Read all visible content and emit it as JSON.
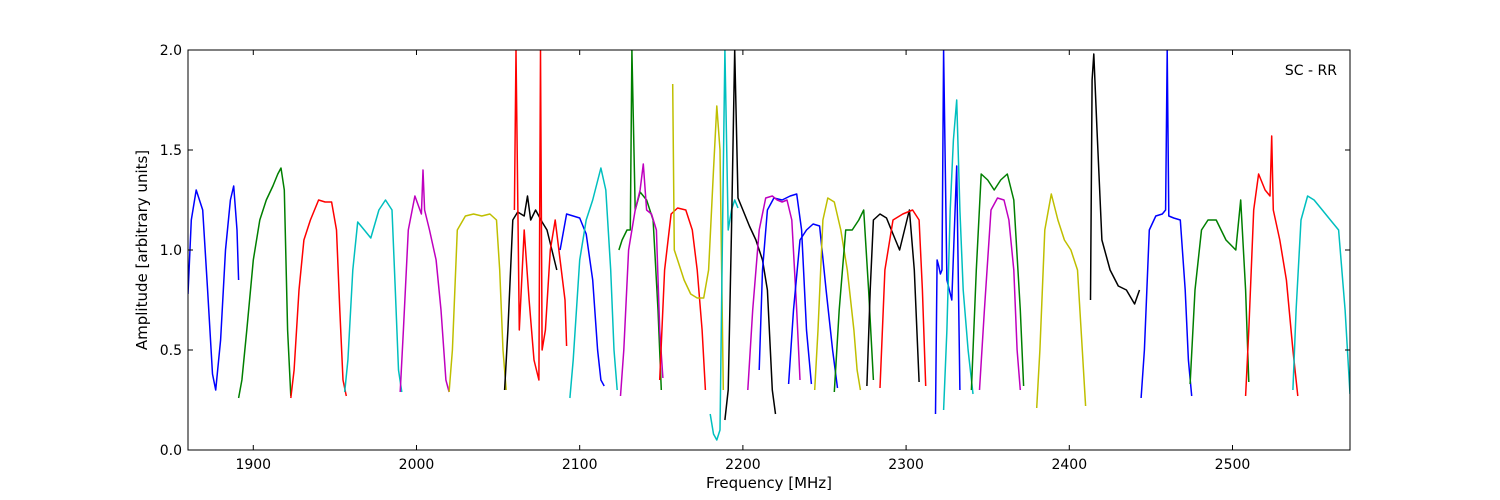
{
  "chart_data": {
    "type": "line",
    "title": "",
    "annotation": "SC - RR",
    "xlabel": "Frequency [MHz]",
    "ylabel": "Amplitude [arbitrary units]",
    "xlim": [
      1860,
      2572
    ],
    "ylim": [
      0.0,
      2.0
    ],
    "xticks": [
      1900,
      2000,
      2100,
      2200,
      2300,
      2400,
      2500
    ],
    "yticks": [
      0.0,
      0.5,
      1.0,
      1.5,
      2.0
    ],
    "xtick_labels": [
      "1900",
      "2000",
      "2100",
      "2200",
      "2300",
      "2400",
      "2500"
    ],
    "ytick_labels": [
      "0.0",
      "0.5",
      "1.0",
      "1.5",
      "2.0"
    ],
    "grid": false,
    "series": [
      {
        "color": "#0000ff",
        "x": [
          1860,
          1862,
          1865,
          1869,
          1872,
          1875,
          1877,
          1880,
          1883,
          1886,
          1888,
          1890,
          1891
        ],
        "y": [
          0.78,
          1.15,
          1.3,
          1.2,
          0.8,
          0.38,
          0.3,
          0.55,
          1.0,
          1.25,
          1.32,
          1.1,
          0.85
        ]
      },
      {
        "color": "#007f00",
        "x": [
          1891,
          1893,
          1896,
          1900,
          1904,
          1908,
          1912,
          1915,
          1917,
          1919,
          1921,
          1923
        ],
        "y": [
          0.26,
          0.35,
          0.6,
          0.95,
          1.15,
          1.25,
          1.32,
          1.38,
          1.41,
          1.3,
          0.6,
          0.27
        ]
      },
      {
        "color": "#ff0000",
        "x": [
          1923,
          1925,
          1928,
          1931,
          1935,
          1940,
          1944,
          1948,
          1951,
          1953,
          1955,
          1957
        ],
        "y": [
          0.26,
          0.4,
          0.8,
          1.05,
          1.15,
          1.25,
          1.24,
          1.24,
          1.1,
          0.7,
          0.35,
          0.27
        ]
      },
      {
        "color": "#00bfbf",
        "x": [
          1956,
          1958,
          1961,
          1964,
          1968,
          1972,
          1977,
          1981,
          1985,
          1987,
          1989,
          1991
        ],
        "y": [
          0.29,
          0.45,
          0.9,
          1.14,
          1.1,
          1.06,
          1.2,
          1.25,
          1.2,
          0.8,
          0.4,
          0.29
        ]
      },
      {
        "color": "#bf00bf",
        "x": [
          1990,
          1992,
          1995,
          1999,
          2003,
          2004,
          2005,
          2008,
          2012,
          2015,
          2018,
          2020
        ],
        "y": [
          0.29,
          0.6,
          1.1,
          1.27,
          1.18,
          1.4,
          1.2,
          1.1,
          0.95,
          0.7,
          0.35,
          0.29
        ]
      },
      {
        "color": "#bfbf00",
        "x": [
          2020,
          2022,
          2025,
          2030,
          2035,
          2040,
          2045,
          2049,
          2051,
          2053,
          2055
        ],
        "y": [
          0.29,
          0.5,
          1.1,
          1.17,
          1.18,
          1.17,
          1.18,
          1.15,
          0.9,
          0.5,
          0.3
        ]
      },
      {
        "color": "#000000",
        "x": [
          2054,
          2056,
          2059,
          2062,
          2066,
          2068,
          2070,
          2073,
          2077,
          2080,
          2083,
          2086
        ],
        "y": [
          0.3,
          0.6,
          1.15,
          1.19,
          1.17,
          1.27,
          1.15,
          1.2,
          1.14,
          1.1,
          1.0,
          0.9
        ]
      },
      {
        "color": "#ff0000",
        "x": [
          2060,
          2061,
          2063,
          2066,
          2069,
          2072,
          2075,
          2076,
          2077,
          2079,
          2082,
          2085,
          2088,
          2091,
          2092
        ],
        "y": [
          1.2,
          2.0,
          0.6,
          1.1,
          0.75,
          0.45,
          0.35,
          2.0,
          0.5,
          0.6,
          1.0,
          1.15,
          0.95,
          0.75,
          0.52
        ]
      },
      {
        "color": "#0000ff",
        "x": [
          2088,
          2092,
          2096,
          2100,
          2104,
          2108,
          2111,
          2113,
          2115
        ],
        "y": [
          1.0,
          1.18,
          1.17,
          1.16,
          1.08,
          0.85,
          0.5,
          0.35,
          0.32
        ]
      },
      {
        "color": "#00bfbf",
        "x": [
          2094,
          2096,
          2100,
          2104,
          2108,
          2113,
          2116,
          2119,
          2121,
          2123
        ],
        "y": [
          0.26,
          0.45,
          0.95,
          1.15,
          1.25,
          1.41,
          1.3,
          0.9,
          0.5,
          0.3
        ]
      },
      {
        "color": "#007f00",
        "x": [
          2124,
          2126,
          2129,
          2131,
          2132,
          2134,
          2137,
          2141,
          2145,
          2148,
          2150
        ],
        "y": [
          1.0,
          1.05,
          1.1,
          1.1,
          2.0,
          1.2,
          1.29,
          1.25,
          1.15,
          0.7,
          0.3
        ]
      },
      {
        "color": "#bf00bf",
        "x": [
          2125,
          2127,
          2130,
          2134,
          2137,
          2139,
          2141,
          2144,
          2147,
          2149,
          2151
        ],
        "y": [
          0.27,
          0.5,
          1.0,
          1.2,
          1.3,
          1.43,
          1.2,
          1.18,
          1.1,
          0.6,
          0.36
        ]
      },
      {
        "color": "#ff0000",
        "x": [
          2149,
          2152,
          2156,
          2160,
          2165,
          2169,
          2172,
          2175,
          2177
        ],
        "y": [
          0.35,
          0.9,
          1.18,
          1.21,
          1.2,
          1.1,
          0.9,
          0.6,
          0.3
        ]
      },
      {
        "color": "#bfbf00",
        "x": [
          2157,
          2158,
          2160,
          2164,
          2168,
          2172,
          2176,
          2179,
          2182,
          2184,
          2186,
          2188
        ],
        "y": [
          1.83,
          1.0,
          0.95,
          0.85,
          0.78,
          0.76,
          0.76,
          0.9,
          1.4,
          1.72,
          1.5,
          0.3
        ]
      },
      {
        "color": "#00bfbf",
        "x": [
          2180,
          2182,
          2184,
          2186,
          2188,
          2189,
          2191,
          2193,
          2195,
          2197
        ],
        "y": [
          0.18,
          0.08,
          0.05,
          0.1,
          1.4,
          2.0,
          1.1,
          1.2,
          1.25,
          1.21
        ]
      },
      {
        "color": "#000000",
        "x": [
          2189,
          2191,
          2193,
          2195,
          2197,
          2200,
          2204,
          2208,
          2212,
          2215,
          2218,
          2220
        ],
        "y": [
          0.15,
          0.3,
          1.1,
          2.0,
          1.26,
          1.2,
          1.12,
          1.05,
          0.95,
          0.8,
          0.3,
          0.18
        ]
      },
      {
        "color": "#0000ff",
        "x": [
          2210,
          2212,
          2215,
          2219,
          2224,
          2229,
          2233,
          2236,
          2239,
          2242
        ],
        "y": [
          0.4,
          0.9,
          1.2,
          1.26,
          1.25,
          1.27,
          1.28,
          1.1,
          0.6,
          0.33
        ]
      },
      {
        "color": "#bf00bf",
        "x": [
          2203,
          2206,
          2210,
          2214,
          2218,
          2221,
          2224,
          2227,
          2230,
          2233,
          2235
        ],
        "y": [
          0.3,
          0.7,
          1.1,
          1.26,
          1.27,
          1.25,
          1.24,
          1.25,
          1.15,
          0.7,
          0.35
        ]
      },
      {
        "color": "#0000ff",
        "x": [
          2228,
          2231,
          2235,
          2239,
          2243,
          2247,
          2251,
          2255,
          2258
        ],
        "y": [
          0.33,
          0.7,
          1.05,
          1.1,
          1.13,
          1.12,
          0.8,
          0.5,
          0.31
        ]
      },
      {
        "color": "#bfbf00",
        "x": [
          2244,
          2246,
          2249,
          2252,
          2256,
          2260,
          2264,
          2268,
          2270,
          2272
        ],
        "y": [
          0.3,
          0.6,
          1.15,
          1.26,
          1.24,
          1.1,
          0.9,
          0.6,
          0.4,
          0.3
        ]
      },
      {
        "color": "#007f00",
        "x": [
          2256,
          2259,
          2263,
          2267,
          2271,
          2274,
          2277,
          2280
        ],
        "y": [
          0.29,
          0.7,
          1.1,
          1.1,
          1.15,
          1.2,
          0.8,
          0.35
        ]
      },
      {
        "color": "#000000",
        "x": [
          2276,
          2278,
          2280,
          2284,
          2288,
          2292,
          2296,
          2299,
          2302,
          2305,
          2308
        ],
        "y": [
          0.32,
          0.8,
          1.15,
          1.18,
          1.16,
          1.08,
          1.0,
          1.1,
          1.2,
          0.9,
          0.34
        ]
      },
      {
        "color": "#ff0000",
        "x": [
          2284,
          2287,
          2292,
          2298,
          2304,
          2308,
          2310,
          2312
        ],
        "y": [
          0.31,
          0.9,
          1.15,
          1.18,
          1.2,
          1.15,
          0.8,
          0.32
        ]
      },
      {
        "color": "#0000ff",
        "x": [
          2318,
          2319,
          2320,
          2321,
          2322,
          2323,
          2325,
          2328,
          2331,
          2333
        ],
        "y": [
          0.18,
          0.95,
          0.92,
          0.88,
          0.9,
          2.0,
          0.85,
          0.75,
          1.42,
          0.3
        ]
      },
      {
        "color": "#00bfbf",
        "x": [
          2323,
          2325,
          2327,
          2329,
          2331,
          2333,
          2335,
          2338,
          2341
        ],
        "y": [
          0.2,
          0.6,
          1.2,
          1.55,
          1.75,
          1.2,
          0.8,
          0.5,
          0.28
        ]
      },
      {
        "color": "#007f00",
        "x": [
          2340,
          2343,
          2346,
          2350,
          2354,
          2358,
          2362,
          2366,
          2370,
          2372
        ],
        "y": [
          0.3,
          0.9,
          1.38,
          1.35,
          1.3,
          1.35,
          1.38,
          1.25,
          0.7,
          0.32
        ]
      },
      {
        "color": "#bf00bf",
        "x": [
          2345,
          2348,
          2352,
          2356,
          2360,
          2363,
          2366,
          2368,
          2370
        ],
        "y": [
          0.3,
          0.7,
          1.2,
          1.26,
          1.25,
          1.15,
          0.9,
          0.5,
          0.3
        ]
      },
      {
        "color": "#bfbf00",
        "x": [
          2380,
          2382,
          2385,
          2389,
          2393,
          2397,
          2401,
          2405,
          2408,
          2410
        ],
        "y": [
          0.21,
          0.5,
          1.1,
          1.28,
          1.15,
          1.05,
          1.0,
          0.9,
          0.5,
          0.22
        ]
      },
      {
        "color": "#000000",
        "x": [
          2413,
          2414,
          2415,
          2417,
          2420,
          2425,
          2430,
          2435,
          2440,
          2443
        ],
        "y": [
          0.75,
          1.85,
          1.98,
          1.6,
          1.05,
          0.9,
          0.82,
          0.8,
          0.73,
          0.8
        ]
      },
      {
        "color": "#0000ff",
        "x": [
          2444,
          2446,
          2449,
          2453,
          2457,
          2459,
          2460,
          2461,
          2464,
          2468,
          2471,
          2473,
          2475
        ],
        "y": [
          0.26,
          0.5,
          1.1,
          1.17,
          1.18,
          1.2,
          2.0,
          1.17,
          1.16,
          1.15,
          0.8,
          0.45,
          0.27
        ]
      },
      {
        "color": "#007f00",
        "x": [
          2474,
          2477,
          2481,
          2485,
          2490,
          2496,
          2502,
          2505,
          2508,
          2510
        ],
        "y": [
          0.33,
          0.8,
          1.1,
          1.15,
          1.15,
          1.05,
          1.0,
          1.25,
          0.8,
          0.34
        ]
      },
      {
        "color": "#ff0000",
        "x": [
          2508,
          2510,
          2513,
          2516,
          2520,
          2523,
          2524,
          2525,
          2529,
          2533,
          2537,
          2540
        ],
        "y": [
          0.27,
          0.6,
          1.2,
          1.38,
          1.3,
          1.27,
          1.57,
          1.2,
          1.05,
          0.85,
          0.5,
          0.27
        ]
      },
      {
        "color": "#00bfbf",
        "x": [
          2537,
          2539,
          2542,
          2546,
          2550,
          2555,
          2560,
          2565,
          2569,
          2572
        ],
        "y": [
          0.3,
          0.7,
          1.15,
          1.27,
          1.25,
          1.2,
          1.15,
          1.1,
          0.7,
          0.28
        ]
      }
    ]
  }
}
